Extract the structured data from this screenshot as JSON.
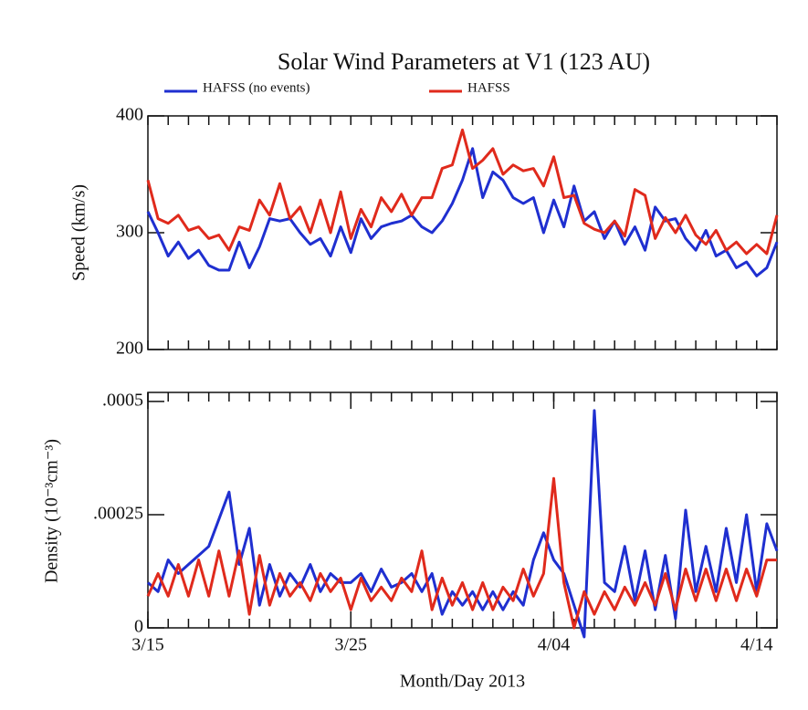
{
  "chart_data": [
    {
      "type": "line",
      "title": "Solar Wind Parameters at V1 (123 AU)",
      "ylabel": "Speed (km/s)",
      "x": [
        0,
        0.5,
        1,
        1.5,
        2,
        2.5,
        3,
        3.5,
        4,
        4.5,
        5,
        5.5,
        6,
        6.5,
        7,
        7.5,
        8,
        8.5,
        9,
        9.5,
        10,
        10.5,
        11,
        11.5,
        12,
        12.5,
        13,
        13.5,
        14,
        14.5,
        15,
        15.5,
        16,
        16.5,
        17,
        17.5,
        18,
        18.5,
        19,
        19.5,
        20,
        20.5,
        21,
        21.5,
        22,
        22.5,
        23,
        23.5,
        24,
        24.5,
        25,
        25.5,
        26,
        26.5,
        27,
        27.5,
        28,
        28.5,
        29,
        29.5,
        30,
        30.5,
        31
      ],
      "xlim": [
        0,
        31
      ],
      "xminorticks": [
        0,
        1,
        2,
        3,
        4,
        5,
        6,
        7,
        8,
        9,
        10,
        11,
        12,
        13,
        14,
        15,
        16,
        17,
        18,
        19,
        20,
        21,
        22,
        23,
        24,
        25,
        26,
        27,
        28,
        29,
        30,
        31
      ],
      "ylim": [
        200,
        400
      ],
      "yticks": [
        200,
        300,
        400
      ],
      "series": [
        {
          "name": "HAFSS (no events)",
          "color": "#1f2fd0",
          "values": [
            318,
            300,
            280,
            292,
            278,
            285,
            272,
            268,
            268,
            292,
            270,
            288,
            312,
            310,
            312,
            300,
            290,
            295,
            280,
            305,
            283,
            312,
            295,
            305,
            308,
            310,
            315,
            305,
            300,
            310,
            325,
            345,
            372,
            330,
            352,
            345,
            330,
            325,
            330,
            300,
            328,
            305,
            340,
            310,
            318,
            295,
            310,
            290,
            305,
            285,
            322,
            310,
            312,
            295,
            285,
            302,
            280,
            285,
            270,
            275,
            263,
            270,
            292
          ]
        },
        {
          "name": "HAFSS",
          "color": "#e02a1c",
          "values": [
            345,
            312,
            308,
            315,
            302,
            305,
            295,
            298,
            285,
            305,
            302,
            328,
            315,
            342,
            312,
            322,
            300,
            328,
            300,
            335,
            295,
            320,
            305,
            330,
            318,
            333,
            315,
            330,
            330,
            355,
            358,
            388,
            355,
            362,
            372,
            350,
            358,
            353,
            355,
            340,
            365,
            330,
            332,
            308,
            303,
            300,
            310,
            297,
            337,
            332,
            295,
            313,
            300,
            315,
            298,
            290,
            302,
            285,
            292,
            282,
            290,
            282,
            315
          ]
        }
      ]
    },
    {
      "type": "line",
      "ylabel": "Density (10⁻³cm⁻³)",
      "xlabel": "Month/Day 2013",
      "x": [
        0,
        0.5,
        1,
        1.5,
        2,
        2.5,
        3,
        3.5,
        4,
        4.5,
        5,
        5.5,
        6,
        6.5,
        7,
        7.5,
        8,
        8.5,
        9,
        9.5,
        10,
        10.5,
        11,
        11.5,
        12,
        12.5,
        13,
        13.5,
        14,
        14.5,
        15,
        15.5,
        16,
        16.5,
        17,
        17.5,
        18,
        18.5,
        19,
        19.5,
        20,
        20.5,
        21,
        21.5,
        22,
        22.5,
        23,
        23.5,
        24,
        24.5,
        25,
        25.5,
        26,
        26.5,
        27,
        27.5,
        28,
        28.5,
        29,
        29.5,
        30,
        30.5,
        31
      ],
      "xlim": [
        0,
        31
      ],
      "xticks": [
        {
          "value": 0,
          "label": "3/15"
        },
        {
          "value": 10,
          "label": "3/25"
        },
        {
          "value": 20,
          "label": "4/04"
        },
        {
          "value": 30,
          "label": "4/14"
        }
      ],
      "xminorticks": [
        0,
        1,
        2,
        3,
        4,
        5,
        6,
        7,
        8,
        9,
        10,
        11,
        12,
        13,
        14,
        15,
        16,
        17,
        18,
        19,
        20,
        21,
        22,
        23,
        24,
        25,
        26,
        27,
        28,
        29,
        30,
        31
      ],
      "ylim": [
        0,
        0.00052
      ],
      "yticks": [
        0,
        {
          "value": 0.00025,
          "label": ".00025"
        },
        {
          "value": 0.0005,
          "label": ".0005"
        }
      ],
      "series": [
        {
          "color": "#1f2fd0",
          "values": [
            0.0001,
            8e-05,
            0.00015,
            0.00012,
            0.00014,
            0.00016,
            0.00018,
            0.00024,
            0.0003,
            0.00014,
            0.00022,
            5e-05,
            0.00014,
            7e-05,
            0.00012,
            9e-05,
            0.00014,
            8e-05,
            0.00012,
            0.0001,
            0.0001,
            0.00012,
            8e-05,
            0.00013,
            9e-05,
            0.0001,
            0.00012,
            8e-05,
            0.00012,
            3e-05,
            8e-05,
            5e-05,
            8e-05,
            4e-05,
            8e-05,
            4e-05,
            8e-05,
            5e-05,
            0.00015,
            0.00021,
            0.00015,
            0.00012,
            5e-05,
            -2e-05,
            0.00048,
            0.0001,
            8e-05,
            0.00018,
            6e-05,
            0.00017,
            4e-05,
            0.00016,
            2e-05,
            0.00026,
            8e-05,
            0.00018,
            8e-05,
            0.00022,
            0.0001,
            0.00025,
            8e-05,
            0.00023,
            0.00017
          ]
        },
        {
          "color": "#e02a1c",
          "values": [
            7e-05,
            0.00012,
            7e-05,
            0.00014,
            7e-05,
            0.00015,
            7e-05,
            0.00017,
            7e-05,
            0.00017,
            3e-05,
            0.00016,
            5e-05,
            0.00012,
            7e-05,
            0.0001,
            6e-05,
            0.00012,
            8e-05,
            0.00011,
            4e-05,
            0.00011,
            6e-05,
            9e-05,
            6e-05,
            0.00011,
            8e-05,
            0.00017,
            4e-05,
            0.00011,
            5e-05,
            0.0001,
            4e-05,
            0.0001,
            4e-05,
            9e-05,
            6e-05,
            0.00013,
            7e-05,
            0.00012,
            0.00033,
            0.0001,
            0.0,
            8e-05,
            3e-05,
            8e-05,
            4e-05,
            9e-05,
            5e-05,
            0.0001,
            5e-05,
            0.00012,
            4e-05,
            0.00013,
            6e-05,
            0.00013,
            6e-05,
            0.00013,
            6e-05,
            0.00013,
            7e-05,
            0.00015,
            0.00015
          ]
        }
      ]
    }
  ]
}
